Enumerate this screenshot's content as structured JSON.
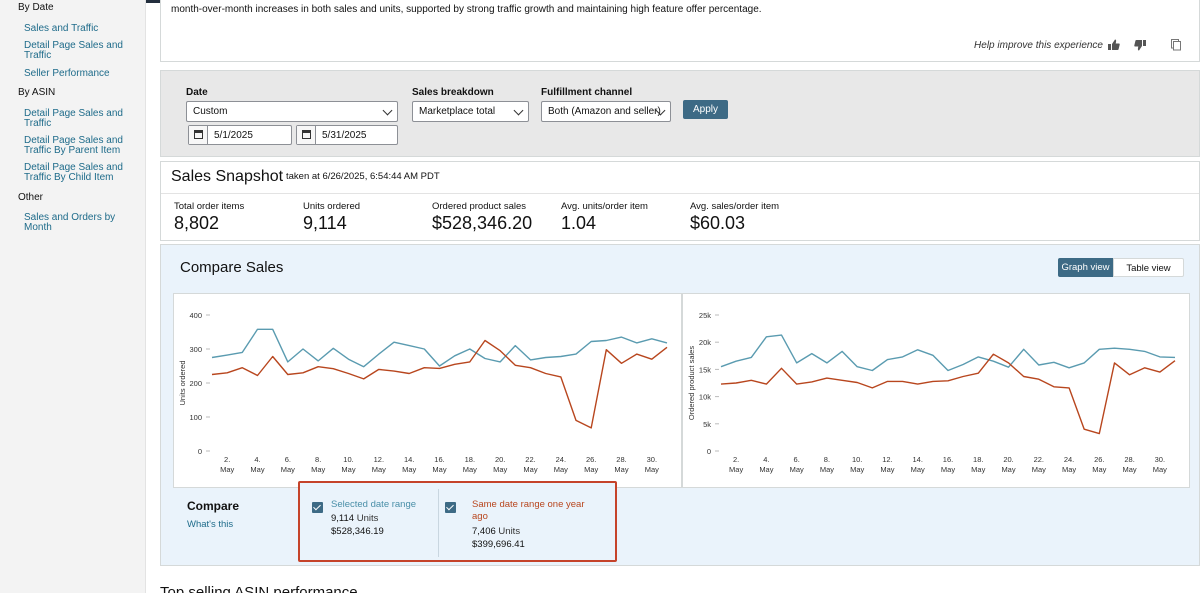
{
  "sidebar": {
    "by_date_heading": "By Date",
    "by_date_items": [
      "Sales and Traffic",
      "Detail Page Sales and Traffic",
      "Seller Performance"
    ],
    "by_asin_heading": "By ASIN",
    "by_asin_items": [
      "Detail Page Sales and Traffic",
      "Detail Page Sales and Traffic By Parent Item",
      "Detail Page Sales and Traffic By Child Item"
    ],
    "other_heading": "Other",
    "other_items": [
      "Sales and Orders by Month"
    ]
  },
  "insight": {
    "text": "month-over-month increases in both sales and units, supported by strong traffic growth and maintaining high feature offer percentage.",
    "help_text": "Help improve this experience"
  },
  "filters": {
    "date_label": "Date",
    "date_value": "Custom",
    "start_date": "5/1/2025",
    "end_date": "5/31/2025",
    "breakdown_label": "Sales breakdown",
    "breakdown_value": "Marketplace total",
    "fulfillment_label": "Fulfillment channel",
    "fulfillment_value": "Both (Amazon and seller)",
    "apply_label": "Apply"
  },
  "snapshot": {
    "title": "Sales Snapshot",
    "taken": "taken at 6/26/2025, 6:54:44 AM PDT",
    "metrics": [
      {
        "label": "Total order items",
        "value": "8,802"
      },
      {
        "label": "Units ordered",
        "value": "9,114"
      },
      {
        "label": "Ordered product sales",
        "value": "$528,346.20"
      },
      {
        "label": "Avg. units/order item",
        "value": "1.04"
      },
      {
        "label": "Avg. sales/order item",
        "value": "$60.03"
      }
    ]
  },
  "compare": {
    "title": "Compare Sales",
    "graph_view": "Graph view",
    "table_view": "Table view",
    "compare_label": "Compare",
    "whats_this": "What's this",
    "selected": {
      "name": "Selected date range",
      "units": "9,114",
      "units_suffix": "Units",
      "sales": "$528,346.19"
    },
    "previous": {
      "name": "Same date range one year ago",
      "units": "7,406",
      "units_suffix": "Units",
      "sales": "$399,696.41"
    }
  },
  "colors": {
    "current": "#5a9bb0",
    "previous": "#b8461e",
    "accent": "#3d6a85"
  },
  "chart_data": [
    {
      "type": "line",
      "ylabel": "Units ordered",
      "ylim": [
        0,
        400
      ],
      "yticks": [
        0,
        100,
        200,
        300,
        400
      ],
      "x": [
        1,
        2,
        3,
        4,
        5,
        6,
        7,
        8,
        9,
        10,
        11,
        12,
        13,
        14,
        15,
        16,
        17,
        18,
        19,
        20,
        21,
        22,
        23,
        24,
        25,
        26,
        27,
        28,
        29,
        30,
        31
      ],
      "xtick_days": [
        2,
        4,
        6,
        8,
        10,
        12,
        14,
        16,
        18,
        20,
        22,
        24,
        26,
        28,
        30
      ],
      "xtick_top": "May",
      "series": [
        {
          "name": "Selected date range",
          "values": [
            275,
            282,
            290,
            358,
            358,
            262,
            300,
            265,
            302,
            270,
            248,
            285,
            320,
            310,
            300,
            250,
            280,
            300,
            272,
            262,
            310,
            268,
            275,
            278,
            285,
            322,
            325,
            335,
            318,
            330,
            318
          ]
        },
        {
          "name": "Same date range one year ago",
          "values": [
            225,
            230,
            245,
            222,
            278,
            225,
            230,
            248,
            242,
            228,
            212,
            240,
            235,
            228,
            245,
            243,
            255,
            262,
            325,
            295,
            252,
            245,
            228,
            218,
            90,
            68,
            298,
            258,
            285,
            270,
            305
          ]
        }
      ]
    },
    {
      "type": "line",
      "ylabel": "Ordered product sales",
      "ylim": [
        0,
        25000
      ],
      "yticks": [
        0,
        5000,
        10000,
        15000,
        20000,
        25000
      ],
      "ytick_labels": [
        "0",
        "5k",
        "10k",
        "15k",
        "20k",
        "25k"
      ],
      "x": [
        1,
        2,
        3,
        4,
        5,
        6,
        7,
        8,
        9,
        10,
        11,
        12,
        13,
        14,
        15,
        16,
        17,
        18,
        19,
        20,
        21,
        22,
        23,
        24,
        25,
        26,
        27,
        28,
        29,
        30,
        31
      ],
      "xtick_days": [
        2,
        4,
        6,
        8,
        10,
        12,
        14,
        16,
        18,
        20,
        22,
        24,
        26,
        28,
        30
      ],
      "xtick_top": "May",
      "series": [
        {
          "name": "Selected date range",
          "values": [
            15500,
            16500,
            17200,
            21000,
            21300,
            16200,
            17900,
            16200,
            18300,
            15500,
            14800,
            16800,
            17300,
            18600,
            17600,
            14800,
            15900,
            17300,
            16500,
            15400,
            18700,
            15800,
            16300,
            15300,
            16200,
            18700,
            18900,
            18700,
            18300,
            17300,
            17200
          ]
        },
        {
          "name": "Same date range one year ago",
          "values": [
            12300,
            12500,
            13000,
            12300,
            15200,
            12300,
            12700,
            13400,
            13000,
            12600,
            11600,
            12800,
            12800,
            12300,
            12800,
            12900,
            13700,
            14300,
            17800,
            16200,
            13700,
            13200,
            11800,
            11600,
            4000,
            3200,
            16200,
            14000,
            15300,
            14500,
            16600
          ]
        }
      ]
    }
  ],
  "bottom": {
    "title": "Top selling ASIN performance"
  }
}
